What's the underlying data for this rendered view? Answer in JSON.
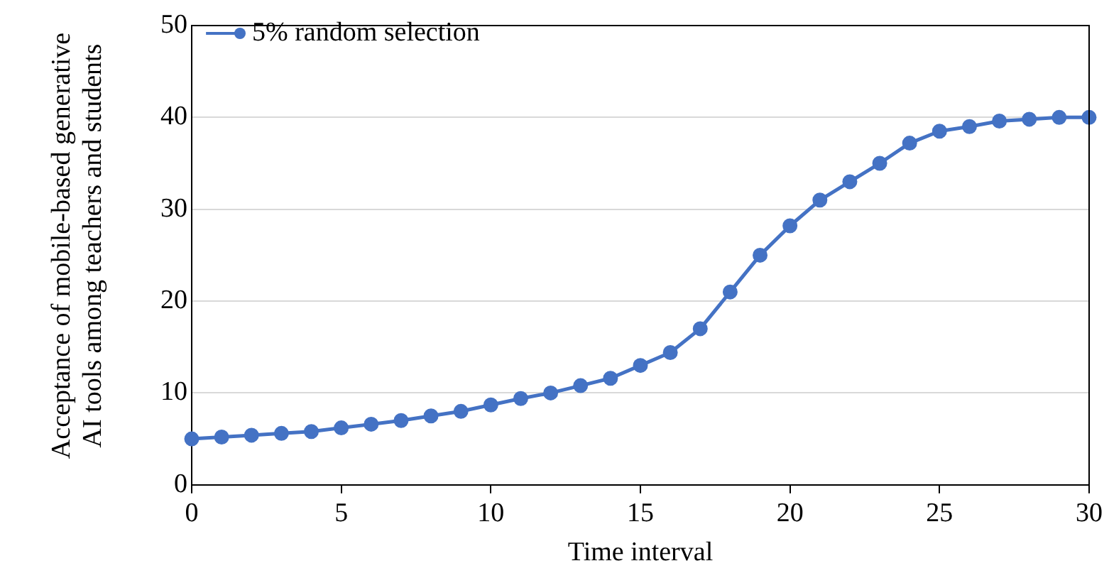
{
  "chart_data": {
    "type": "line",
    "xlabel": "Time interval",
    "ylabel": "Acceptance of mobile-based generative AI tools among teachers and students",
    "x": [
      0,
      1,
      2,
      3,
      4,
      5,
      6,
      7,
      8,
      9,
      10,
      11,
      12,
      13,
      14,
      15,
      16,
      17,
      18,
      19,
      20,
      21,
      22,
      23,
      24,
      25,
      26,
      27,
      28,
      29,
      30
    ],
    "series": [
      {
        "name": "5% random selection",
        "color": "#4472c4",
        "values": [
          5,
          5.2,
          5.4,
          5.6,
          5.8,
          6.2,
          6.6,
          7,
          7.5,
          8,
          8.7,
          9.4,
          10,
          10.8,
          11.6,
          13,
          14.4,
          17,
          21,
          25,
          28.2,
          31,
          33,
          35,
          37.2,
          38.5,
          39,
          39.6,
          39.8,
          40,
          40
        ]
      }
    ],
    "xlim": [
      0,
      30
    ],
    "xticks": [
      0,
      5,
      10,
      15,
      20,
      25,
      30
    ],
    "ylim": [
      0,
      50
    ],
    "yticks": [
      0,
      10,
      20,
      30,
      40,
      50
    ],
    "grid": "y",
    "legend": "top left",
    "marker": "circle",
    "line_style": "solid"
  }
}
